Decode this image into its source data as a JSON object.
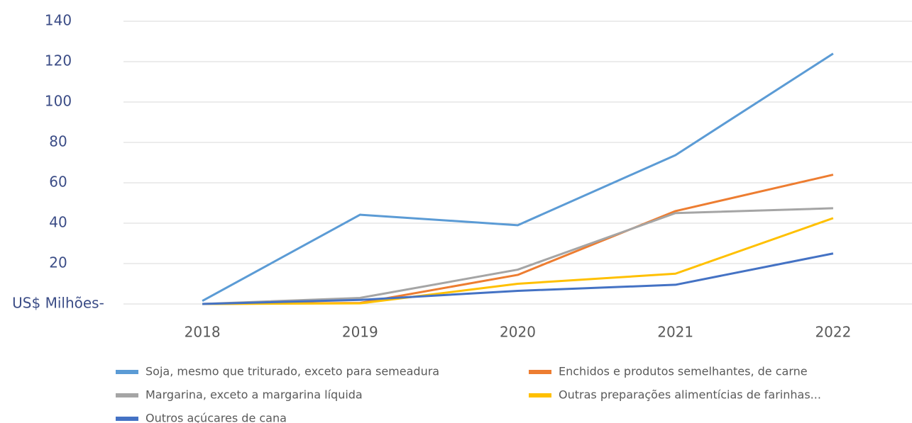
{
  "chart_data": {
    "type": "line",
    "categories": [
      "2018",
      "2019",
      "2020",
      "2021",
      "2022"
    ],
    "series": [
      {
        "name": "Soja, mesmo que triturado, exceto para semeadura",
        "color": "#5b9bd5",
        "values": [
          1.5,
          44.2,
          39,
          73.7,
          124
        ]
      },
      {
        "name": "Enchidos e produtos semelhantes, de carne",
        "color": "#ed7d31",
        "values": [
          0,
          0.5,
          14.4,
          46,
          64
        ]
      },
      {
        "name": "Margarina, exceto a margarina líquida",
        "color": "#a5a5a5",
        "values": [
          0,
          3,
          17,
          45,
          47.4
        ]
      },
      {
        "name": "Outras preparações alimentícias de farinhas...",
        "color": "#ffc000",
        "values": [
          0,
          0.3,
          10,
          15,
          42.5
        ]
      },
      {
        "name": "Outros açúcares de cana",
        "color": "#4472c4",
        "values": [
          0,
          2,
          6.5,
          9.5,
          25
        ]
      }
    ],
    "ylim": [
      0,
      140
    ],
    "yticks": [
      {
        "value": 0,
        "label": "US$ Milhões-"
      },
      20,
      40,
      60,
      80,
      100,
      120,
      140
    ],
    "grid": true
  }
}
